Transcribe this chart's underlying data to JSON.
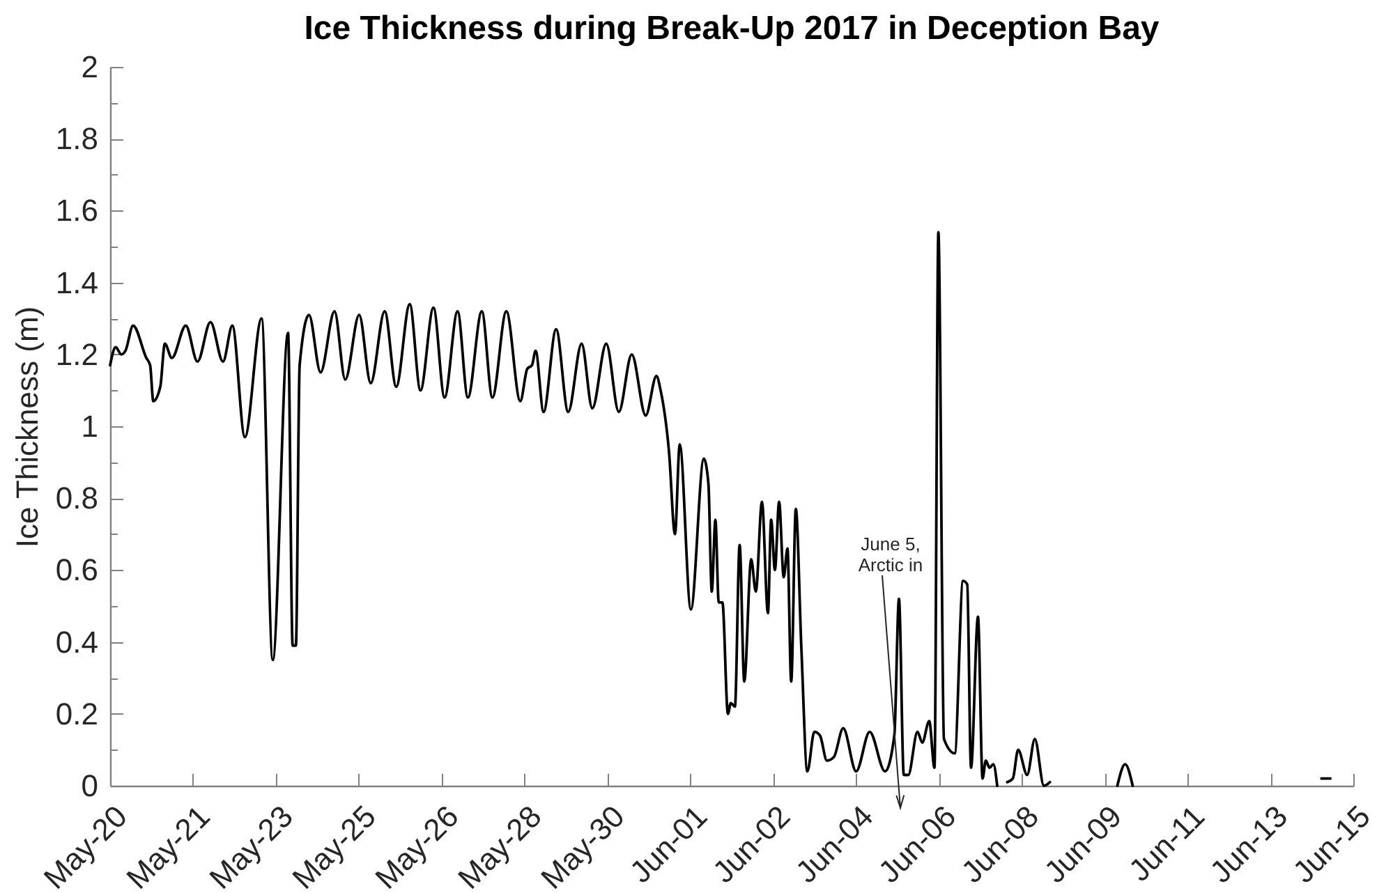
{
  "chart_data": {
    "type": "line",
    "title": "Ice Thickness during Break-Up 2017 in Deception Bay",
    "ylabel": "Ice Thickness (m)",
    "color": "#000000",
    "x": [
      "2017-05-20T00:00",
      "2017-05-20T02:48",
      "2017-05-20T05:36",
      "2017-05-20T07:42",
      "2017-05-20T11:32",
      "2017-05-20T18:11",
      "2017-05-20T20:05",
      "2017-05-20T21:41",
      "2017-05-21T01:11",
      "2017-05-21T03:29",
      "2017-05-21T06:59",
      "2017-05-21T13:59",
      "2017-05-21T19:52",
      "2017-05-22T02:22",
      "2017-05-22T08:40",
      "2017-05-22T13:21",
      "2017-05-22T19:39",
      "2017-05-23T04:02",
      "2017-05-23T09:38",
      "2017-05-23T17:20",
      "2017-05-23T19:38",
      "2017-05-23T21:15",
      "2017-05-23T23:08",
      "2017-05-24T03:50",
      "2017-05-24T09:38",
      "2017-05-24T16:38",
      "2017-05-24T22:01",
      "2017-05-25T05:01",
      "2017-05-25T10:49",
      "2017-05-25T17:49",
      "2017-05-25T23:37",
      "2017-05-26T06:24",
      "2017-05-26T11:47",
      "2017-05-26T18:18",
      "2017-05-26T23:53",
      "2017-05-27T06:24",
      "2017-05-27T11:35",
      "2017-05-27T18:34",
      "2017-05-27T23:53",
      "2017-05-28T06:53",
      "2017-05-28T13:53",
      "2017-05-28T17:23",
      "2017-05-28T19:45",
      "2017-05-28T21:34",
      "2017-05-29T01:34",
      "2017-05-29T07:52",
      "2017-05-29T13:56",
      "2017-05-29T20:40",
      "2017-05-30T02:02",
      "2017-05-30T09:02",
      "2017-05-30T15:20",
      "2017-05-30T21:50",
      "2017-05-31T04:50",
      "2017-05-31T10:13",
      "2017-05-31T12:19",
      "2017-05-31T16:31",
      "2017-05-31T19:32",
      "2017-05-31T21:55",
      "2017-06-01T03:30",
      "2017-06-01T10:01",
      "2017-06-01T12:19",
      "2017-06-01T14:00",
      "2017-06-01T15:49",
      "2017-06-01T17:29",
      "2017-06-01T19:19",
      "2017-06-01T22:07",
      "2017-06-01T23:31",
      "2017-06-02T01:37",
      "2017-06-02T03:59",
      "2017-06-02T06:18",
      "2017-06-02T09:47",
      "2017-06-02T12:06",
      "2017-06-02T15:11",
      "2017-06-02T18:11",
      "2017-06-02T19:48",
      "2017-06-02T21:41",
      "2017-06-02T23:47",
      "2017-06-03T02:06",
      "2017-06-03T03:59",
      "2017-06-03T05:52",
      "2017-06-03T08:11",
      "2017-06-03T10:59",
      "2017-06-03T13:59",
      "2017-06-03T17:29",
      "2017-06-03T20:17",
      "2017-06-03T23:47",
      "2017-06-04T03:17",
      "2017-06-04T07:58",
      "2017-06-04T14:28",
      "2017-06-04T21:15",
      "2017-06-05T04:57",
      "2017-06-05T09:38",
      "2017-06-05T11:57",
      "2017-06-05T14:23",
      "2017-06-05T16:38",
      "2017-06-05T21:15",
      "2017-06-05T23:38",
      "2017-06-06T03:08",
      "2017-06-06T05:47",
      "2017-06-06T07:44",
      "2017-06-06T10:32",
      "2017-06-06T15:56",
      "2017-06-06T20:07",
      "2017-06-06T22:13",
      "2017-06-07T00:07",
      "2017-06-07T03:37",
      "2017-06-07T05:55",
      "2017-06-07T07:32",
      "2017-06-07T09:25",
      "2017-06-07T11:19",
      "2017-06-07T13:16",
      "2017-06-07T15:01",
      "2017-06-07T18:18",
      "2017-06-07T21:06",
      "2017-06-07T23:46",
      "2017-06-08T04:18",
      "2017-06-08T08:09",
      "2017-06-08T12:42",
      "2017-06-08T15:43",
      "2017-06-09T06:53",
      "2017-06-10T01:34",
      "2017-06-10T05:29",
      "2017-06-10T09:16",
      "2017-06-12T08:20",
      "2017-06-14T08:00",
      "2017-06-14T12:30"
    ],
    "values": [
      1.17,
      1.22,
      1.2,
      1.21,
      1.28,
      1.19,
      1.17,
      1.07,
      1.11,
      1.23,
      1.19,
      1.28,
      1.18,
      1.29,
      1.18,
      1.28,
      0.97,
      1.3,
      0.35,
      1.26,
      0.39,
      0.39,
      1.17,
      1.31,
      1.15,
      1.32,
      1.13,
      1.31,
      1.12,
      1.32,
      1.11,
      1.34,
      1.1,
      1.33,
      1.08,
      1.32,
      1.08,
      1.32,
      1.08,
      1.32,
      1.07,
      1.16,
      1.17,
      1.21,
      1.04,
      1.27,
      1.04,
      1.23,
      1.05,
      1.23,
      1.04,
      1.2,
      1.03,
      1.14,
      1.1,
      0.93,
      0.7,
      0.95,
      0.49,
      0.91,
      0.84,
      0.54,
      0.74,
      0.51,
      0.51,
      0.2,
      0.23,
      0.22,
      0.67,
      0.29,
      0.63,
      0.54,
      0.79,
      0.48,
      0.74,
      0.6,
      0.79,
      0.58,
      0.66,
      0.29,
      0.77,
      0.38,
      0.04,
      0.15,
      0.14,
      0.07,
      0.08,
      0.16,
      0.04,
      0.15,
      0.04,
      0.14,
      0.52,
      0.03,
      0.03,
      0.15,
      0.12,
      0.18,
      0.05,
      1.54,
      0.13,
      0.09,
      0.57,
      0.56,
      0.05,
      0.47,
      0.02,
      0.07,
      0.05,
      0.06,
      0.0,
      null,
      0.01,
      0.02,
      0.1,
      0.03,
      0.13,
      0.0,
      0.01,
      null,
      0.0,
      0.06,
      0.0,
      null,
      0.02,
      0.02
    ],
    "xlim": [
      "2017-05-20T00:00",
      "2017-06-15T00:00"
    ],
    "xticks": [
      {
        "value": "2017-05-20T00:00",
        "label": "May-20"
      },
      {
        "value": "2017-05-21T17:36",
        "label": "May-21"
      },
      {
        "value": "2017-05-23T11:12",
        "label": "May-23"
      },
      {
        "value": "2017-05-25T04:48",
        "label": "May-25"
      },
      {
        "value": "2017-05-26T22:24",
        "label": "May-26"
      },
      {
        "value": "2017-05-28T16:00",
        "label": "May-28"
      },
      {
        "value": "2017-05-30T09:36",
        "label": "May-30"
      },
      {
        "value": "2017-06-01T03:12",
        "label": "Jun-01"
      },
      {
        "value": "2017-06-02T20:48",
        "label": "Jun-02"
      },
      {
        "value": "2017-06-04T14:24",
        "label": "Jun-04"
      },
      {
        "value": "2017-06-06T08:00",
        "label": "Jun-06"
      },
      {
        "value": "2017-06-08T01:36",
        "label": "Jun-08"
      },
      {
        "value": "2017-06-09T19:12",
        "label": "Jun-09"
      },
      {
        "value": "2017-06-11T12:48",
        "label": "Jun-11"
      },
      {
        "value": "2017-06-13T06:24",
        "label": "Jun-13"
      },
      {
        "value": "2017-06-15T00:00",
        "label": "Jun-15"
      }
    ],
    "ylim": [
      0,
      2
    ],
    "yticks": [
      0,
      {
        "value": 0.1,
        "label": null
      },
      0.2,
      {
        "value": 0.3,
        "label": null
      },
      0.4,
      {
        "value": 0.5,
        "label": null
      },
      0.6,
      {
        "value": 0.7,
        "label": null
      },
      0.8,
      {
        "value": 0.9,
        "label": null
      },
      1,
      {
        "value": 1.1,
        "label": null
      },
      1.2,
      {
        "value": 1.3,
        "label": null
      },
      1.4,
      {
        "value": 1.5,
        "label": null
      },
      1.6,
      {
        "value": 1.7,
        "label": null
      },
      1.8,
      {
        "value": 1.9,
        "label": null
      },
      2
    ],
    "annotations": [
      "June 5,\nArctic in"
    ]
  }
}
